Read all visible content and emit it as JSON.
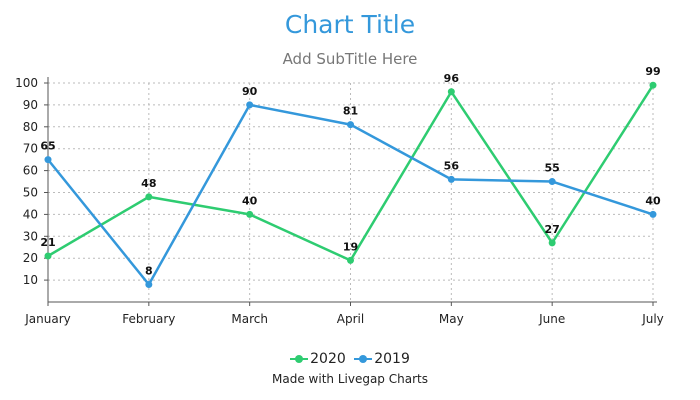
{
  "chart_data": {
    "type": "line",
    "title": "Chart Title",
    "subtitle": "Add SubTitle Here",
    "categories": [
      "January",
      "February",
      "March",
      "April",
      "May",
      "June",
      "July"
    ],
    "series": [
      {
        "name": "2020",
        "color": "#2ecc71",
        "values": [
          21,
          48,
          40,
          19,
          96,
          27,
          99
        ]
      },
      {
        "name": "2019",
        "color": "#3498db",
        "values": [
          65,
          8,
          90,
          81,
          56,
          55,
          40
        ]
      }
    ],
    "y_ticks": [
      10,
      20,
      30,
      40,
      50,
      60,
      70,
      80,
      90,
      100
    ],
    "ylim": [
      0,
      100
    ],
    "grid": true,
    "legend_position": "bottom-center",
    "credit": "Made with Livegap Charts"
  }
}
